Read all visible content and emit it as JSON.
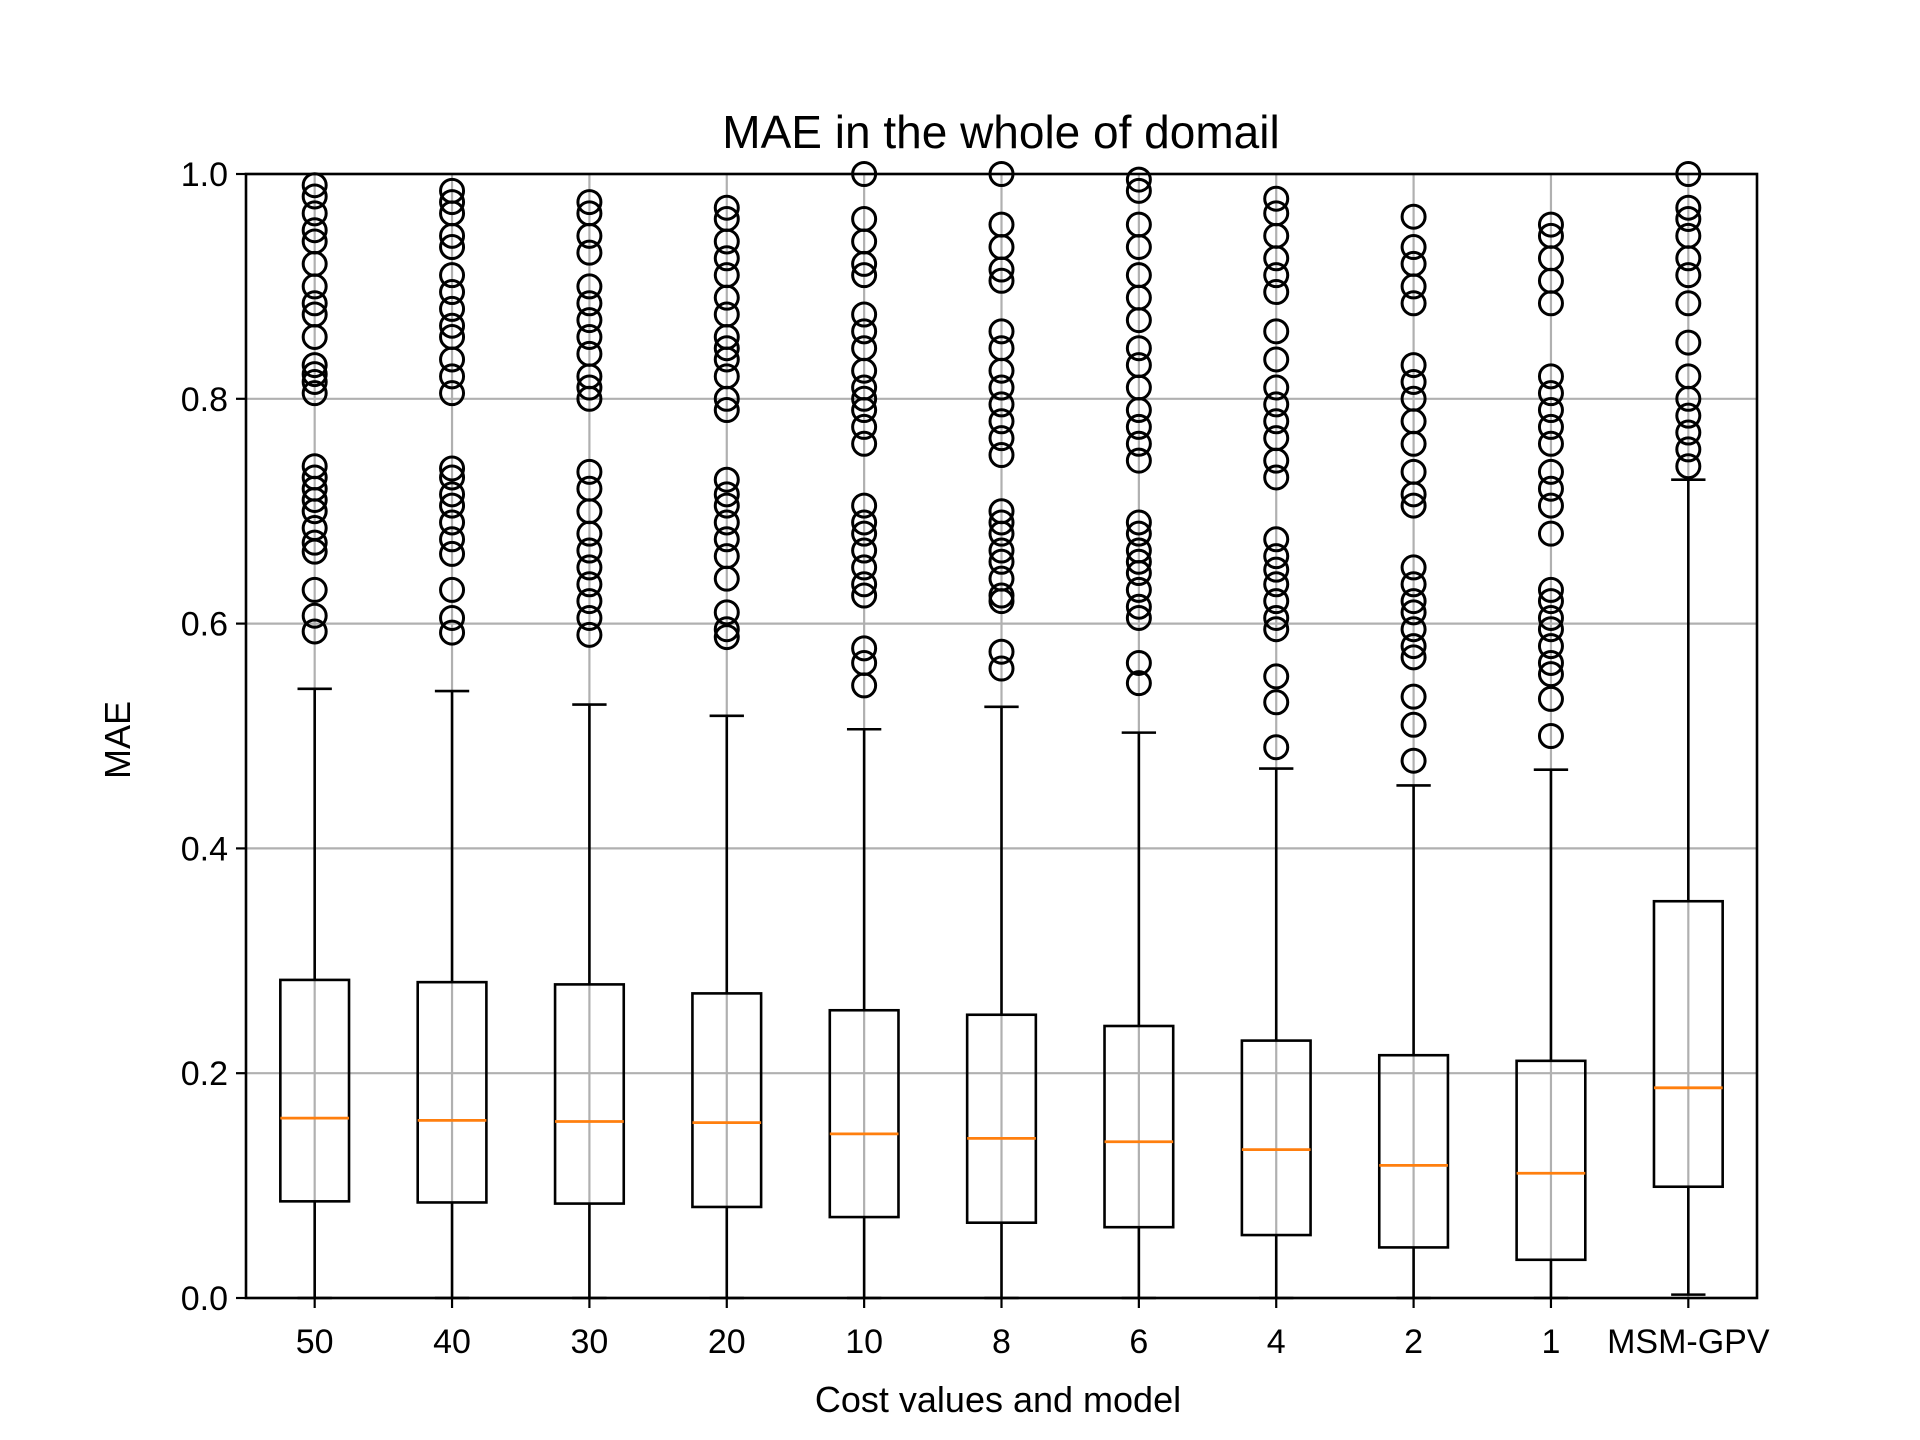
{
  "chart_data": {
    "type": "box",
    "title": "MAE in the whole of domail",
    "xlabel": "Cost values and model",
    "ylabel": "MAE",
    "ylim": [
      0.0,
      1.0
    ],
    "yticks": [
      "0.0",
      "0.2",
      "0.4",
      "0.6",
      "0.8",
      "1.0"
    ],
    "grid": true,
    "colors": {
      "box": "#000000",
      "median": "#ff7f0e",
      "grid": "#b0b0b0"
    },
    "categories": [
      "50",
      "40",
      "30",
      "20",
      "10",
      "8",
      "6",
      "4",
      "2",
      "1",
      "MSM-GPV"
    ],
    "boxes": [
      {
        "label": "50",
        "whislo": 0.0,
        "q1": 0.086,
        "med": 0.16,
        "q3": 0.283,
        "whishi": 0.542,
        "fliers": [
          0.593,
          0.607,
          0.63,
          0.664,
          0.672,
          0.685,
          0.7,
          0.71,
          0.72,
          0.73,
          0.74,
          0.805,
          0.815,
          0.822,
          0.83,
          0.855,
          0.875,
          0.885,
          0.9,
          0.92,
          0.94,
          0.95,
          0.965,
          0.98,
          0.99
        ]
      },
      {
        "label": "40",
        "whislo": 0.0,
        "q1": 0.085,
        "med": 0.158,
        "q3": 0.281,
        "whishi": 0.54,
        "fliers": [
          0.592,
          0.605,
          0.63,
          0.662,
          0.675,
          0.69,
          0.705,
          0.715,
          0.73,
          0.738,
          0.805,
          0.82,
          0.835,
          0.855,
          0.865,
          0.88,
          0.895,
          0.91,
          0.935,
          0.945,
          0.965,
          0.975,
          0.985
        ]
      },
      {
        "label": "30",
        "whislo": 0.0,
        "q1": 0.084,
        "med": 0.157,
        "q3": 0.279,
        "whishi": 0.528,
        "fliers": [
          0.59,
          0.605,
          0.62,
          0.635,
          0.65,
          0.665,
          0.68,
          0.7,
          0.72,
          0.735,
          0.8,
          0.81,
          0.82,
          0.84,
          0.855,
          0.87,
          0.885,
          0.9,
          0.93,
          0.945,
          0.965,
          0.975
        ]
      },
      {
        "label": "20",
        "whislo": 0.0,
        "q1": 0.081,
        "med": 0.156,
        "q3": 0.271,
        "whishi": 0.518,
        "fliers": [
          0.588,
          0.595,
          0.61,
          0.64,
          0.66,
          0.675,
          0.69,
          0.705,
          0.715,
          0.728,
          0.79,
          0.8,
          0.82,
          0.835,
          0.845,
          0.855,
          0.875,
          0.89,
          0.91,
          0.925,
          0.94,
          0.96,
          0.97
        ]
      },
      {
        "label": "10",
        "whislo": 0.0,
        "q1": 0.072,
        "med": 0.146,
        "q3": 0.256,
        "whishi": 0.506,
        "fliers": [
          0.545,
          0.565,
          0.578,
          0.625,
          0.635,
          0.65,
          0.665,
          0.68,
          0.69,
          0.705,
          0.76,
          0.775,
          0.79,
          0.8,
          0.81,
          0.825,
          0.845,
          0.86,
          0.875,
          0.91,
          0.92,
          0.94,
          0.96,
          1.0
        ]
      },
      {
        "label": "8",
        "whislo": 0.0,
        "q1": 0.067,
        "med": 0.142,
        "q3": 0.252,
        "whishi": 0.526,
        "fliers": [
          0.56,
          0.575,
          0.62,
          0.625,
          0.64,
          0.655,
          0.665,
          0.68,
          0.69,
          0.7,
          0.75,
          0.765,
          0.78,
          0.795,
          0.81,
          0.825,
          0.845,
          0.86,
          0.905,
          0.915,
          0.935,
          0.955,
          1.0
        ]
      },
      {
        "label": "6",
        "whislo": 0.0,
        "q1": 0.063,
        "med": 0.139,
        "q3": 0.242,
        "whishi": 0.503,
        "fliers": [
          0.547,
          0.565,
          0.605,
          0.615,
          0.63,
          0.645,
          0.655,
          0.665,
          0.68,
          0.69,
          0.745,
          0.76,
          0.775,
          0.79,
          0.81,
          0.83,
          0.845,
          0.87,
          0.89,
          0.91,
          0.935,
          0.955,
          0.985,
          0.995
        ]
      },
      {
        "label": "4",
        "whislo": 0.0,
        "q1": 0.056,
        "med": 0.132,
        "q3": 0.229,
        "whishi": 0.471,
        "fliers": [
          0.49,
          0.53,
          0.553,
          0.595,
          0.605,
          0.62,
          0.635,
          0.648,
          0.66,
          0.675,
          0.73,
          0.745,
          0.765,
          0.78,
          0.795,
          0.81,
          0.835,
          0.86,
          0.895,
          0.91,
          0.925,
          0.945,
          0.965,
          0.978
        ]
      },
      {
        "label": "2",
        "whislo": 0.0,
        "q1": 0.045,
        "med": 0.118,
        "q3": 0.216,
        "whishi": 0.456,
        "fliers": [
          0.478,
          0.51,
          0.535,
          0.57,
          0.58,
          0.595,
          0.61,
          0.62,
          0.635,
          0.65,
          0.705,
          0.715,
          0.735,
          0.76,
          0.78,
          0.8,
          0.815,
          0.83,
          0.885,
          0.9,
          0.92,
          0.935,
          0.962
        ]
      },
      {
        "label": "1",
        "whislo": 0.0,
        "q1": 0.034,
        "med": 0.111,
        "q3": 0.211,
        "whishi": 0.47,
        "fliers": [
          0.5,
          0.533,
          0.555,
          0.565,
          0.58,
          0.595,
          0.605,
          0.62,
          0.63,
          0.68,
          0.705,
          0.72,
          0.735,
          0.76,
          0.775,
          0.79,
          0.805,
          0.82,
          0.885,
          0.905,
          0.925,
          0.945,
          0.955
        ]
      },
      {
        "label": "MSM-GPV",
        "whislo": 0.003,
        "q1": 0.099,
        "med": 0.187,
        "q3": 0.353,
        "whishi": 0.728,
        "fliers": [
          0.74,
          0.755,
          0.77,
          0.785,
          0.8,
          0.82,
          0.85,
          0.885,
          0.91,
          0.925,
          0.945,
          0.96,
          0.97,
          1.0
        ]
      }
    ]
  }
}
